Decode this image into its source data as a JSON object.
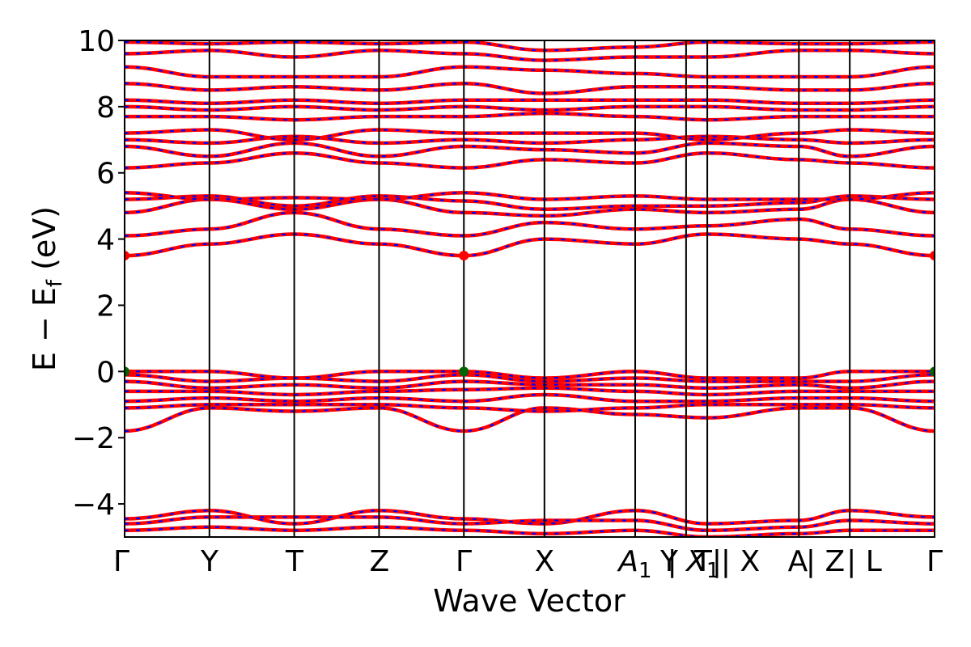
{
  "chart_data": {
    "type": "line",
    "title": "",
    "xlabel": "Wave Vector",
    "ylabel": "E − E",
    "ylabel_sub": "f",
    "ylabel_unit": " (eV)",
    "ylim": [
      -5,
      10
    ],
    "yticks": [
      "−4",
      "−2",
      "0",
      "2",
      "4",
      "6",
      "8",
      "10"
    ],
    "ytick_values": [
      -4,
      -2,
      0,
      2,
      4,
      6,
      8,
      10
    ],
    "grid": false,
    "legend": "none",
    "colors": {
      "spin_up": "#ff0000",
      "spin_down": "#0000ff",
      "cbm": "#ff0000",
      "vbm": "#006400"
    },
    "kpath": [
      {
        "label": "Γ",
        "k": 0.0
      },
      {
        "label": "Y",
        "k": 1.0
      },
      {
        "label": "T",
        "k": 2.0
      },
      {
        "label": "Z",
        "k": 3.0
      },
      {
        "label": "Γ",
        "k": 4.0
      },
      {
        "label": "X",
        "k": 4.95
      },
      {
        "label": "A",
        "label_sub": "1",
        "k": 6.02
      },
      {
        "label": "Y",
        "k": 6.62
      },
      {
        "label": "X",
        "label_sub": "1",
        "k": 6.87,
        "prefix": "|"
      },
      {
        "label": "T",
        "k": 6.87,
        "suffix": "|"
      },
      {
        "label": "X",
        "k": 7.6,
        "prefix": "|"
      },
      {
        "label": "A",
        "k": 7.95
      },
      {
        "label": "Z",
        "k": 8.55,
        "prefix": "|"
      },
      {
        "label": "L",
        "k": 8.9,
        "prefix": "|"
      },
      {
        "label": "Γ",
        "k": 9.55
      }
    ],
    "xlim": [
      0,
      9.55
    ],
    "vertical_lines_k": [
      1.0,
      2.0,
      3.0,
      4.0,
      4.95,
      6.02,
      6.62,
      6.87,
      7.95,
      8.55
    ],
    "band_edges": [
      {
        "name": "CBM",
        "points": [
          [
            0.0,
            3.5
          ],
          [
            4.0,
            3.5
          ],
          [
            9.55,
            3.5
          ]
        ]
      },
      {
        "name": "VBM",
        "points": [
          [
            0.0,
            0.0
          ],
          [
            4.0,
            0.0
          ],
          [
            9.55,
            0.0
          ]
        ]
      }
    ],
    "series": [
      {
        "values_by_node": [
          -4.45,
          -4.2,
          -4.6,
          -4.2,
          -4.45,
          -4.6,
          -4.2,
          -4.6,
          -4.5,
          -4.2,
          -4.4
        ]
      },
      {
        "values_by_node": [
          -4.6,
          -4.4,
          -4.4,
          -4.4,
          -4.6,
          -4.5,
          -4.5,
          -4.8,
          -4.7,
          -4.5,
          -4.6
        ]
      },
      {
        "values_by_node": [
          -4.8,
          -4.7,
          -4.8,
          -4.7,
          -4.8,
          -4.9,
          -4.8,
          -5.0,
          -4.9,
          -4.8,
          -4.8
        ]
      },
      {
        "values_by_node": [
          -1.8,
          -1.1,
          -1.2,
          -1.1,
          -1.8,
          -1.1,
          -1.3,
          -1.4,
          -1.1,
          -1.1,
          -1.8
        ]
      },
      {
        "values_by_node": [
          -1.1,
          -1.0,
          -1.0,
          -1.0,
          -1.1,
          -1.2,
          -1.1,
          -1.0,
          -1.0,
          -1.0,
          -1.1
        ]
      },
      {
        "values_by_node": [
          -0.9,
          -0.8,
          -0.9,
          -0.8,
          -0.9,
          -0.7,
          -0.9,
          -0.9,
          -0.8,
          -0.8,
          -0.9
        ]
      },
      {
        "values_by_node": [
          -0.6,
          -0.6,
          -0.7,
          -0.6,
          -0.55,
          -0.5,
          -0.6,
          -0.7,
          -0.6,
          -0.6,
          -0.6
        ]
      },
      {
        "values_by_node": [
          -0.3,
          -0.5,
          -0.4,
          -0.5,
          -0.3,
          -0.4,
          -0.4,
          -0.5,
          -0.4,
          -0.5,
          -0.3
        ]
      },
      {
        "values_by_node": [
          -0.1,
          -0.3,
          -0.2,
          -0.3,
          -0.1,
          -0.3,
          -0.2,
          -0.3,
          -0.3,
          -0.3,
          -0.1
        ]
      },
      {
        "values_by_node": [
          0.0,
          0.0,
          -0.2,
          0.0,
          0.0,
          -0.2,
          0.0,
          -0.2,
          -0.2,
          0.0,
          0.0
        ]
      },
      {
        "values_by_node": [
          3.5,
          3.85,
          4.15,
          3.85,
          3.5,
          4.0,
          3.85,
          4.15,
          4.0,
          3.85,
          3.5
        ]
      },
      {
        "values_by_node": [
          4.1,
          4.3,
          4.8,
          4.3,
          4.1,
          4.5,
          4.3,
          4.4,
          4.6,
          4.3,
          4.1
        ]
      },
      {
        "values_by_node": [
          4.8,
          5.2,
          4.9,
          5.2,
          4.8,
          4.7,
          4.9,
          4.8,
          4.9,
          5.2,
          4.8
        ]
      },
      {
        "values_by_node": [
          5.2,
          5.3,
          5.0,
          5.3,
          5.15,
          4.9,
          5.0,
          5.0,
          5.1,
          5.3,
          5.2
        ]
      },
      {
        "values_by_node": [
          5.4,
          5.2,
          5.25,
          5.2,
          5.4,
          5.2,
          5.3,
          5.2,
          5.2,
          5.2,
          5.4
        ]
      },
      {
        "values_by_node": [
          6.15,
          6.3,
          6.6,
          6.3,
          6.15,
          6.4,
          6.3,
          6.6,
          6.4,
          6.3,
          6.15
        ]
      },
      {
        "values_by_node": [
          6.8,
          6.5,
          6.9,
          6.5,
          6.8,
          6.7,
          6.6,
          6.9,
          6.8,
          6.5,
          6.8
        ]
      },
      {
        "values_by_node": [
          7.0,
          6.9,
          7.1,
          6.9,
          7.0,
          6.9,
          7.0,
          7.1,
          7.0,
          6.9,
          7.0
        ]
      },
      {
        "values_by_node": [
          7.2,
          7.3,
          7.0,
          7.3,
          7.2,
          7.2,
          7.2,
          7.0,
          7.2,
          7.3,
          7.2
        ]
      },
      {
        "values_by_node": [
          7.7,
          7.7,
          7.6,
          7.7,
          7.7,
          7.8,
          7.7,
          7.6,
          7.7,
          7.7,
          7.7
        ]
      },
      {
        "values_by_node": [
          8.0,
          7.9,
          8.0,
          7.9,
          8.0,
          7.9,
          8.0,
          8.0,
          7.9,
          7.9,
          8.0
        ]
      },
      {
        "values_by_node": [
          8.2,
          8.1,
          8.2,
          8.1,
          8.2,
          8.2,
          8.2,
          8.2,
          8.1,
          8.1,
          8.2
        ]
      },
      {
        "values_by_node": [
          8.7,
          8.5,
          8.6,
          8.5,
          8.7,
          8.4,
          8.6,
          8.6,
          8.5,
          8.5,
          8.7
        ]
      },
      {
        "values_by_node": [
          9.2,
          8.9,
          8.9,
          8.9,
          9.2,
          9.1,
          9.0,
          8.9,
          8.9,
          8.9,
          9.2
        ]
      },
      {
        "values_by_node": [
          9.6,
          9.7,
          9.5,
          9.7,
          9.6,
          9.4,
          9.5,
          9.5,
          9.7,
          9.7,
          9.6
        ]
      },
      {
        "values_by_node": [
          9.95,
          9.9,
          9.95,
          9.9,
          9.95,
          9.7,
          9.8,
          9.95,
          9.9,
          9.9,
          9.95
        ]
      }
    ],
    "band_node_k": [
      0.0,
      1.0,
      2.0,
      3.0,
      4.0,
      4.95,
      6.02,
      6.87,
      7.95,
      8.55,
      9.55
    ]
  }
}
